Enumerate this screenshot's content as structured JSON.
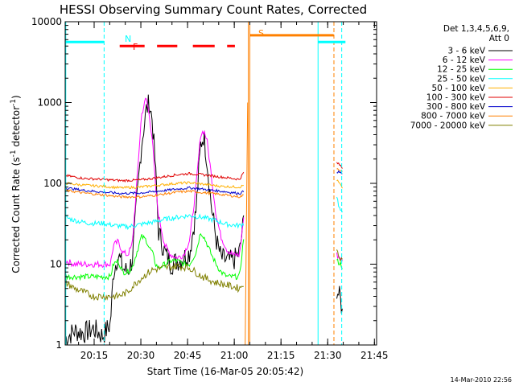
{
  "chart_data": {
    "type": "line",
    "title": "HESSI Observing Summary Count Rates, Corrected",
    "xlabel": "Start Time (16-Mar-05 20:05:42)",
    "ylabel": "Corrected Count Rate (s",
    "ylabel_sup1": "-1",
    "ylabel_mid": " detector",
    "ylabel_sup2": "-1",
    "ylabel_end": ")",
    "y_scale": "log",
    "ylim": [
      1,
      10000
    ],
    "xlim_minutes": [
      0,
      100
    ],
    "y_ticks": [
      {
        "value": 1,
        "label": "1"
      },
      {
        "value": 10,
        "label": "10"
      },
      {
        "value": 100,
        "label": "100"
      },
      {
        "value": 1000,
        "label": "1000"
      },
      {
        "value": 10000,
        "label": "10000"
      }
    ],
    "x_ticks": [
      {
        "minute": 9.3,
        "label": "20:15"
      },
      {
        "minute": 24.3,
        "label": "20:30"
      },
      {
        "minute": 39.3,
        "label": "20:45"
      },
      {
        "minute": 54.3,
        "label": "21:00"
      },
      {
        "minute": 69.3,
        "label": "21:15"
      },
      {
        "minute": 84.3,
        "label": "21:30"
      },
      {
        "minute": 99.3,
        "label": "21:45"
      }
    ],
    "legend": {
      "header1": "Det 1,3,4,5,6,9,",
      "header2": "Att 0",
      "placement": "right"
    },
    "series": [
      {
        "name": "3 - 6 keV",
        "color": "#000000",
        "pts": [
          [
            0,
            1.2
          ],
          [
            3,
            1.5
          ],
          [
            6,
            1.4
          ],
          [
            9,
            1.6
          ],
          [
            12,
            1.3
          ],
          [
            14.5,
            1.8
          ],
          [
            15.5,
            8
          ],
          [
            17,
            13
          ],
          [
            18.5,
            9
          ],
          [
            20,
            8
          ],
          [
            21.5,
            11
          ],
          [
            23,
            60
          ],
          [
            24.5,
            300
          ],
          [
            26,
            800
          ],
          [
            27,
            1000
          ],
          [
            28,
            600
          ],
          [
            29,
            150
          ],
          [
            30,
            25
          ],
          [
            32,
            14
          ],
          [
            34,
            10
          ],
          [
            36,
            11
          ],
          [
            38,
            12
          ],
          [
            40,
            14
          ],
          [
            42,
            45
          ],
          [
            43.5,
            300
          ],
          [
            44.5,
            400
          ],
          [
            45.5,
            200
          ],
          [
            47,
            50
          ],
          [
            48.5,
            20
          ],
          [
            50,
            12
          ],
          [
            52,
            11
          ],
          [
            54,
            11
          ],
          [
            56,
            14
          ],
          [
            57.5,
            40
          ]
        ],
        "post": [
          [
            87.2,
            5
          ],
          [
            88.5,
            3.5
          ],
          [
            89.2,
            2.2
          ]
        ]
      },
      {
        "name": "6 - 12 keV",
        "color": "#ff00ff",
        "pts": [
          [
            0,
            11
          ],
          [
            3,
            10
          ],
          [
            6,
            10
          ],
          [
            9,
            10
          ],
          [
            12,
            10
          ],
          [
            14.5,
            10
          ],
          [
            15.5,
            17
          ],
          [
            17,
            19
          ],
          [
            18.5,
            14
          ],
          [
            20,
            13
          ],
          [
            21.5,
            17
          ],
          [
            23,
            100
          ],
          [
            24.5,
            700
          ],
          [
            26,
            1150
          ],
          [
            27,
            700
          ],
          [
            28,
            350
          ],
          [
            29,
            90
          ],
          [
            30,
            40
          ],
          [
            32,
            17
          ],
          [
            34,
            13
          ],
          [
            36,
            12
          ],
          [
            38,
            13
          ],
          [
            40,
            20
          ],
          [
            42,
            90
          ],
          [
            43.5,
            400
          ],
          [
            44.5,
            450
          ],
          [
            45.5,
            350
          ],
          [
            47,
            120
          ],
          [
            48.5,
            40
          ],
          [
            50,
            22
          ],
          [
            52,
            15
          ],
          [
            54,
            13
          ],
          [
            56,
            13
          ],
          [
            57.5,
            45
          ]
        ],
        "post": [
          [
            87.2,
            13
          ],
          [
            88.5,
            12
          ],
          [
            89.2,
            10
          ]
        ]
      },
      {
        "name": "12 - 25 keV",
        "color": "#00ff00",
        "pts": [
          [
            0,
            7
          ],
          [
            3,
            7
          ],
          [
            6,
            7
          ],
          [
            9,
            7
          ],
          [
            12,
            7
          ],
          [
            14.5,
            7
          ],
          [
            15.5,
            10
          ],
          [
            17,
            11
          ],
          [
            18.5,
            8
          ],
          [
            20,
            8
          ],
          [
            21.5,
            9
          ],
          [
            23,
            14
          ],
          [
            24.5,
            22
          ],
          [
            26,
            20
          ],
          [
            27,
            16
          ],
          [
            28,
            14
          ],
          [
            29,
            10
          ],
          [
            30,
            9
          ],
          [
            32,
            10
          ],
          [
            34,
            11
          ],
          [
            36,
            11
          ],
          [
            38,
            10
          ],
          [
            40,
            10
          ],
          [
            42,
            14
          ],
          [
            43.5,
            25
          ],
          [
            44.5,
            22
          ],
          [
            45.5,
            18
          ],
          [
            47,
            13
          ],
          [
            48.5,
            10
          ],
          [
            50,
            8
          ],
          [
            52,
            7
          ],
          [
            54,
            7
          ],
          [
            56,
            7
          ],
          [
            57.5,
            25
          ]
        ],
        "post": [
          [
            87.2,
            11
          ],
          [
            88.5,
            10
          ],
          [
            89.2,
            9
          ]
        ]
      },
      {
        "name": "25 - 50 keV",
        "color": "#00ffff",
        "pts": [
          [
            0,
            38
          ],
          [
            4,
            34
          ],
          [
            8,
            32
          ],
          [
            12,
            32
          ],
          [
            16,
            30
          ],
          [
            20,
            29
          ],
          [
            24,
            31
          ],
          [
            28,
            33
          ],
          [
            32,
            36
          ],
          [
            36,
            38
          ],
          [
            40,
            40
          ],
          [
            44,
            38
          ],
          [
            48,
            35
          ],
          [
            52,
            31
          ],
          [
            56,
            30
          ],
          [
            57.5,
            32
          ]
        ],
        "post": [
          [
            87.2,
            70
          ],
          [
            88,
            50
          ],
          [
            89.2,
            40
          ]
        ]
      },
      {
        "name": "50 - 100 keV",
        "color": "#ffb000",
        "pts": [
          [
            0,
            100
          ],
          [
            6,
            95
          ],
          [
            12,
            92
          ],
          [
            18,
            88
          ],
          [
            24,
            90
          ],
          [
            30,
            95
          ],
          [
            36,
            100
          ],
          [
            40,
            102
          ],
          [
            44,
            98
          ],
          [
            50,
            92
          ],
          [
            56,
            90
          ],
          [
            57.5,
            95
          ]
        ],
        "post": [
          [
            87.2,
            110
          ],
          [
            88.5,
            95
          ],
          [
            89.2,
            80
          ]
        ]
      },
      {
        "name": "100 - 300 keV",
        "color": "#e00000",
        "pts": [
          [
            0,
            125
          ],
          [
            6,
            115
          ],
          [
            12,
            112
          ],
          [
            18,
            108
          ],
          [
            24,
            110
          ],
          [
            30,
            118
          ],
          [
            36,
            128
          ],
          [
            40,
            132
          ],
          [
            44,
            128
          ],
          [
            50,
            120
          ],
          [
            56,
            112
          ],
          [
            57.5,
            140
          ]
        ],
        "post": [
          [
            87.2,
            180
          ],
          [
            88.5,
            165
          ],
          [
            89.2,
            150
          ]
        ]
      },
      {
        "name": "300 - 800 keV",
        "color": "#0000cc",
        "pts": [
          [
            0,
            88
          ],
          [
            6,
            82
          ],
          [
            12,
            78
          ],
          [
            18,
            75
          ],
          [
            24,
            76
          ],
          [
            30,
            80
          ],
          [
            36,
            85
          ],
          [
            40,
            88
          ],
          [
            44,
            85
          ],
          [
            50,
            80
          ],
          [
            56,
            75
          ],
          [
            57.5,
            80
          ]
        ],
        "post": [
          [
            87.2,
            140
          ],
          [
            88.5,
            135
          ],
          [
            89.2,
            130
          ]
        ]
      },
      {
        "name": "800 - 7000 keV",
        "color": "#ff8000",
        "pts": [
          [
            0,
            82
          ],
          [
            6,
            76
          ],
          [
            12,
            72
          ],
          [
            18,
            68
          ],
          [
            24,
            68
          ],
          [
            30,
            72
          ],
          [
            36,
            78
          ],
          [
            40,
            80
          ],
          [
            44,
            77
          ],
          [
            50,
            73
          ],
          [
            56,
            68
          ],
          [
            57.5,
            72
          ]
        ],
        "post": [
          [
            87.2,
            155
          ],
          [
            88.5,
            145
          ],
          [
            89.2,
            135
          ]
        ]
      },
      {
        "name": "7000 - 20000 keV",
        "color": "#808000",
        "pts": [
          [
            0,
            6
          ],
          [
            3,
            5
          ],
          [
            6,
            4.5
          ],
          [
            9,
            4
          ],
          [
            12,
            4
          ],
          [
            14.5,
            4
          ],
          [
            17,
            4
          ],
          [
            20,
            4.5
          ],
          [
            22,
            5.5
          ],
          [
            24,
            6.5
          ],
          [
            26,
            7.5
          ],
          [
            28,
            8.5
          ],
          [
            32,
            9
          ],
          [
            36,
            9.5
          ],
          [
            40,
            9
          ],
          [
            44,
            7
          ],
          [
            48,
            6
          ],
          [
            52,
            5.5
          ],
          [
            56,
            5
          ],
          [
            57.5,
            6
          ]
        ],
        "post": [
          [
            87.2,
            14
          ],
          [
            88.5,
            12
          ],
          [
            89.2,
            11
          ]
        ]
      }
    ],
    "flags": {
      "N_label": "N",
      "F_label": "F",
      "S_label": "S",
      "night_level": 5600,
      "flare_level": 5000,
      "saa_level": 6800,
      "night_segments": [
        [
          0,
          12.5
        ],
        [
          81.2,
          90
        ]
      ],
      "flare_segments": [
        [
          17.5,
          25.5
        ],
        [
          29.5,
          36
        ],
        [
          41,
          48
        ],
        [
          52,
          54.5
        ]
      ],
      "saa_segments": [
        [
          59.3,
          86.2
        ]
      ],
      "vlines": [
        {
          "minute": 0.2,
          "color": "#00ffff",
          "dash": false
        },
        {
          "minute": 12.5,
          "color": "#00ffff",
          "dash": true
        },
        {
          "minute": 58.8,
          "color": "#ff8000",
          "dash": false
        },
        {
          "minute": 59.3,
          "color": "#ff8000",
          "dash": false
        },
        {
          "minute": 81.2,
          "color": "#00ffff",
          "dash": false
        },
        {
          "minute": 86.3,
          "color": "#ff8000",
          "dash": true
        },
        {
          "minute": 88.8,
          "color": "#00ffff",
          "dash": true
        }
      ],
      "orange_spike": [
        [
          57.8,
          1
        ],
        [
          58.6,
          1000
        ]
      ],
      "flag_colors": {
        "N": "#00ffff",
        "F": "#ff0000",
        "S": "#ff8000"
      }
    }
  },
  "footer": {
    "timestamp": "14-Mar-2010 22:56"
  }
}
